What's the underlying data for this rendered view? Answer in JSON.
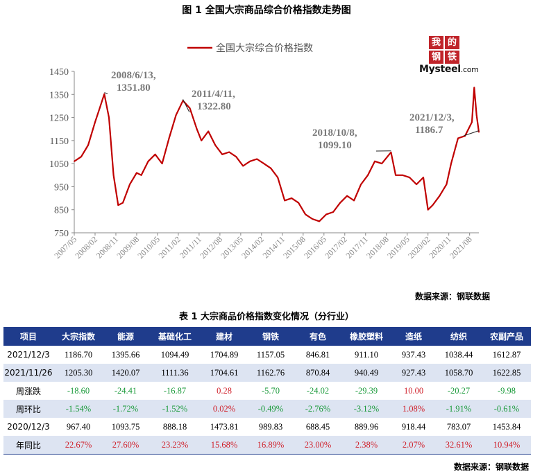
{
  "figure_title": "图 1 全国大宗商品综合价格指数走势图",
  "logo": {
    "cells": [
      "我",
      "的",
      "钢",
      "铁"
    ],
    "brand": "Mysteel",
    "suffix": ".com"
  },
  "chart_source": "数据来源：钢联数据",
  "chart_data": {
    "type": "line",
    "title": "",
    "xlabel": "",
    "ylabel": "",
    "ylim": [
      750,
      1450
    ],
    "yticks": [
      750,
      850,
      950,
      1050,
      1150,
      1250,
      1350,
      1450
    ],
    "xticks": [
      "2007/05",
      "2008/02",
      "2008/11",
      "2009/08",
      "2010/05",
      "2011/02",
      "2011/11",
      "2012/08",
      "2013/05",
      "2014/02",
      "2014/11",
      "2015/08",
      "2016/05",
      "2017/02",
      "2017/11",
      "2018/08",
      "2019/05",
      "2020/02",
      "2020/11",
      "2021/08"
    ],
    "x_start": "2007/05",
    "x_end": "2021/12",
    "legend": "top-center",
    "grid": false,
    "series": [
      {
        "name": "全国大宗综合价格指数",
        "color": "#c00000",
        "x": [
          "2007/05",
          "2007/08",
          "2007/11",
          "2008/02",
          "2008/04",
          "2008/06",
          "2008/08",
          "2008/10",
          "2008/12",
          "2009/02",
          "2009/05",
          "2009/08",
          "2009/10",
          "2010/01",
          "2010/04",
          "2010/07",
          "2010/10",
          "2011/01",
          "2011/04",
          "2011/07",
          "2011/10",
          "2011/12",
          "2012/03",
          "2012/06",
          "2012/09",
          "2012/12",
          "2013/03",
          "2013/06",
          "2013/09",
          "2013/12",
          "2014/03",
          "2014/06",
          "2014/09",
          "2014/12",
          "2015/03",
          "2015/06",
          "2015/09",
          "2015/12",
          "2016/03",
          "2016/06",
          "2016/09",
          "2016/12",
          "2017/03",
          "2017/06",
          "2017/09",
          "2017/12",
          "2018/03",
          "2018/06",
          "2018/10",
          "2018/12",
          "2019/03",
          "2019/06",
          "2019/09",
          "2019/12",
          "2020/02",
          "2020/04",
          "2020/07",
          "2020/10",
          "2020/12",
          "2021/03",
          "2021/06",
          "2021/09",
          "2021/10",
          "2021/11",
          "2021/12"
        ],
        "values": [
          1060,
          1080,
          1130,
          1230,
          1290,
          1351.8,
          1250,
          1000,
          870,
          880,
          960,
          1010,
          1000,
          1060,
          1090,
          1050,
          1160,
          1260,
          1322.8,
          1290,
          1200,
          1150,
          1190,
          1130,
          1090,
          1100,
          1080,
          1040,
          1060,
          1070,
          1050,
          1030,
          990,
          890,
          900,
          880,
          830,
          810,
          800,
          830,
          840,
          880,
          910,
          890,
          960,
          1000,
          1060,
          1050,
          1099.1,
          1000,
          1000,
          990,
          960,
          990,
          850,
          870,
          910,
          960,
          1050,
          1160,
          1170,
          1230,
          1380,
          1260,
          1186.7
        ]
      }
    ],
    "annotations": [
      {
        "x": "2008/06",
        "y": 1351.8,
        "line1": "2008/6/13,",
        "line2": "1351.80"
      },
      {
        "x": "2011/04",
        "y": 1322.8,
        "line1": "2011/4/11,",
        "line2": "1322.80"
      },
      {
        "x": "2018/10",
        "y": 1099.1,
        "line1": "2018/10/8,",
        "line2": "1099.10"
      },
      {
        "x": "2021/12",
        "y": 1186.7,
        "line1": "2021/12/3,",
        "line2": "1186.7"
      }
    ]
  },
  "table": {
    "title": "表 1 大宗商品价格指数变化情况（分行业）",
    "headers": [
      "项目",
      "大宗指数",
      "能源",
      "基础化工",
      "建材",
      "钢铁",
      "有色",
      "橡胶塑料",
      "造纸",
      "纺织",
      "农副产品"
    ],
    "rows": [
      {
        "label": "2021/12/3",
        "values": [
          "1186.70",
          "1395.66",
          "1094.49",
          "1704.89",
          "1157.05",
          "846.81",
          "911.10",
          "937.43",
          "1038.44",
          "1612.87"
        ],
        "colored": false
      },
      {
        "label": "2021/11/26",
        "values": [
          "1205.30",
          "1420.07",
          "1111.36",
          "1704.61",
          "1162.76",
          "870.84",
          "940.49",
          "927.43",
          "1058.70",
          "1622.85"
        ],
        "colored": false
      },
      {
        "label": "周涨跌",
        "values": [
          "-18.60",
          "-24.41",
          "-16.87",
          "0.28",
          "-5.70",
          "-24.02",
          "-29.39",
          "10.00",
          "-20.27",
          "-9.98"
        ],
        "colored": true
      },
      {
        "label": "周环比",
        "values": [
          "-1.54%",
          "-1.72%",
          "-1.52%",
          "0.02%",
          "-0.49%",
          "-2.76%",
          "-3.12%",
          "1.08%",
          "-1.91%",
          "-0.61%"
        ],
        "colored": true
      },
      {
        "label": "2020/12/3",
        "values": [
          "967.40",
          "1093.75",
          "888.18",
          "1473.81",
          "989.83",
          "688.45",
          "889.96",
          "918.44",
          "783.07",
          "1453.84"
        ],
        "colored": false
      },
      {
        "label": "年同比",
        "values": [
          "22.67%",
          "27.60%",
          "23.23%",
          "15.68%",
          "16.89%",
          "23.00%",
          "2.38%",
          "2.07%",
          "32.61%",
          "10.94%"
        ],
        "colored": true
      }
    ],
    "source": "数据来源：钢联数据"
  }
}
